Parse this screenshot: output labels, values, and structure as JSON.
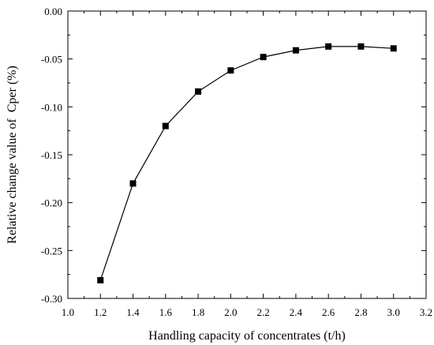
{
  "chart_data": {
    "type": "line",
    "title": "",
    "xlabel": "Handling capacity of concentrates (t/h)",
    "ylabel": "Relative change value of  Cper (%)",
    "xlim": [
      1.0,
      3.2
    ],
    "ylim": [
      -0.3,
      0.0
    ],
    "x_ticks": [
      "1.0",
      "1.2",
      "1.4",
      "1.6",
      "1.8",
      "2.0",
      "2.2",
      "2.4",
      "2.6",
      "2.8",
      "3.0",
      "3.2"
    ],
    "y_ticks": [
      "0.00",
      "-0.05",
      "-0.10",
      "-0.15",
      "-0.20",
      "-0.25",
      "-0.30"
    ],
    "grid": false,
    "legend": "none",
    "marker": "square",
    "colors": {
      "line": "#000000",
      "marker": "#000000",
      "axis": "#000000",
      "background": "#ffffff"
    },
    "series": [
      {
        "x": [
          1.2,
          1.4,
          1.6,
          1.8,
          2.0,
          2.2,
          2.4,
          2.6,
          2.8,
          3.0
        ],
        "y": [
          -0.281,
          -0.18,
          -0.12,
          -0.084,
          -0.062,
          -0.048,
          -0.041,
          -0.037,
          -0.037,
          -0.039
        ]
      }
    ]
  }
}
